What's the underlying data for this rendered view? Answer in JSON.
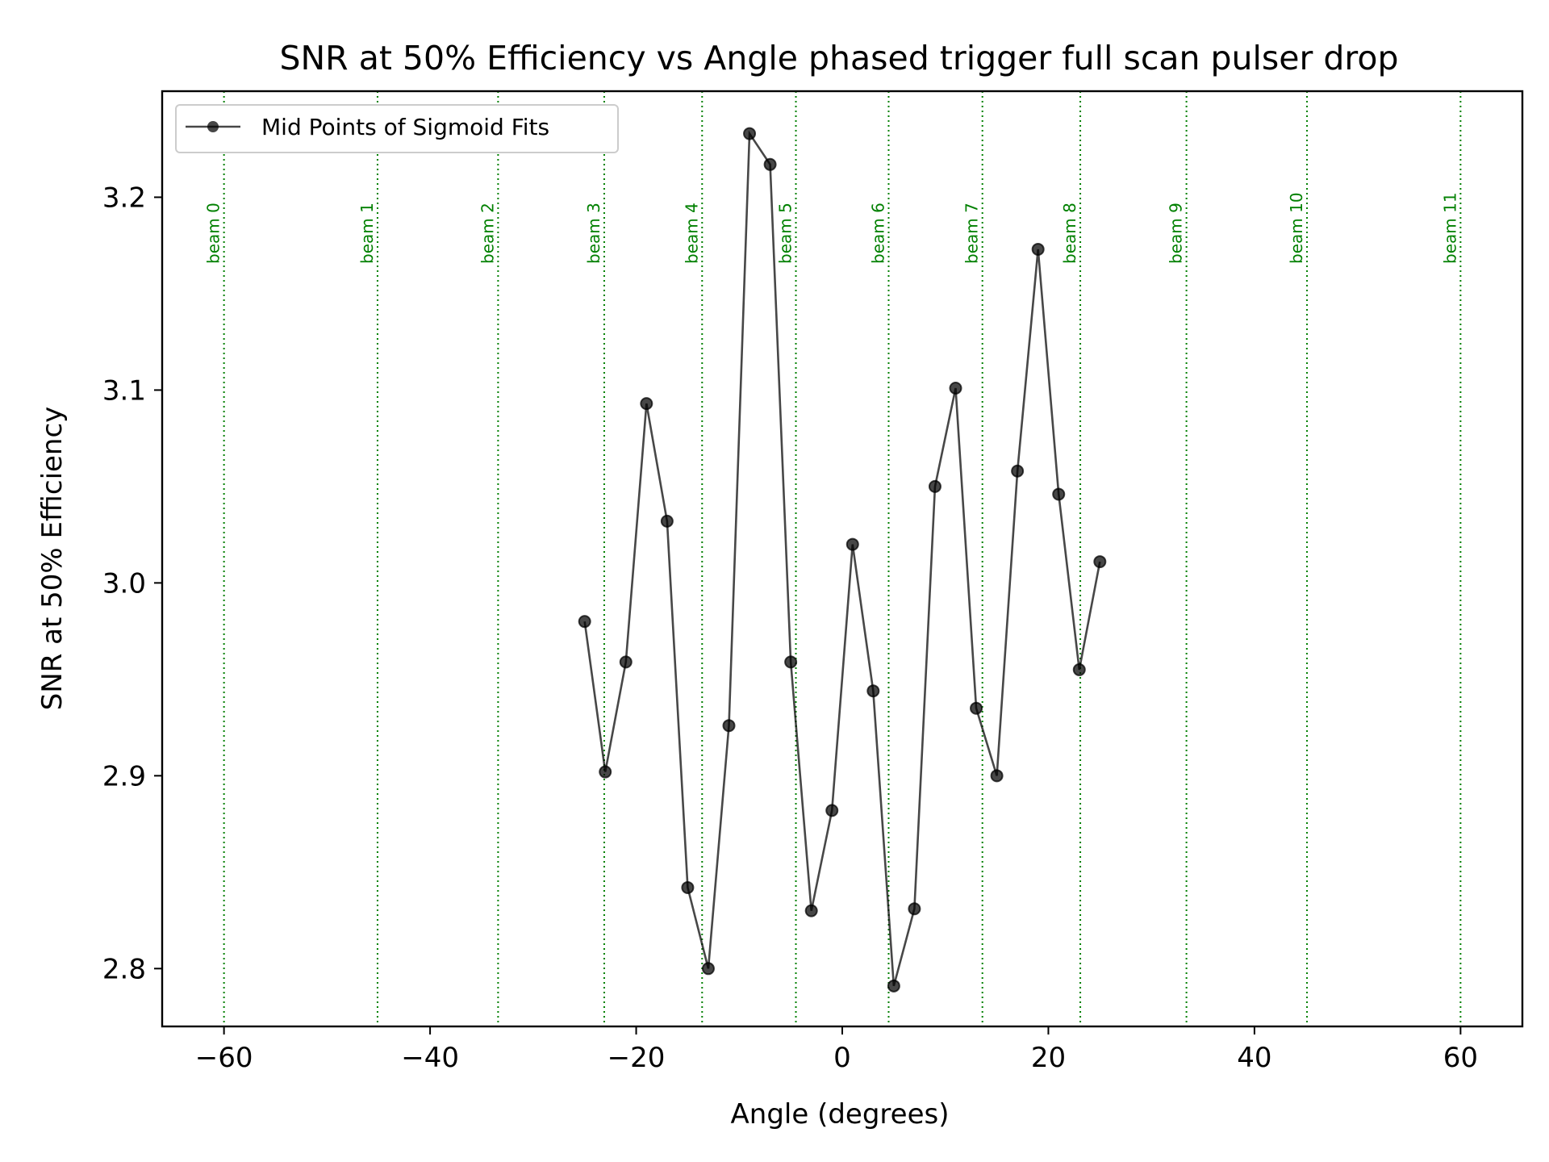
{
  "chart_data": {
    "type": "line",
    "title": "SNR at 50% Efficiency vs Angle phased trigger full scan pulser drop",
    "xlabel": "Angle (degrees)",
    "ylabel": "SNR at 50% Efficiency",
    "xlim": [
      -66,
      66
    ],
    "ylim": [
      2.77,
      3.255
    ],
    "xticks": [
      -60,
      -40,
      -20,
      0,
      20,
      40,
      60
    ],
    "xtick_labels": [
      "−60",
      "−40",
      "−20",
      "0",
      "20",
      "40",
      "60"
    ],
    "yticks": [
      2.8,
      2.9,
      3.0,
      3.1,
      3.2
    ],
    "ytick_labels": [
      "2.8",
      "2.9",
      "3.0",
      "3.1",
      "3.2"
    ],
    "grid": false,
    "legend_position": "top-left",
    "series": [
      {
        "name": "Mid Points of Sigmoid Fits",
        "color": "#000000",
        "x": [
          -25,
          -23,
          -21,
          -19,
          -17,
          -15,
          -13,
          -11,
          -9,
          -7,
          -5,
          -3,
          -1,
          1,
          3,
          5,
          7,
          9,
          11,
          13,
          15,
          17,
          19,
          21,
          23,
          25
        ],
        "y": [
          2.98,
          2.902,
          2.959,
          3.093,
          3.032,
          2.842,
          2.8,
          2.926,
          3.233,
          3.217,
          2.959,
          2.83,
          2.882,
          3.02,
          2.944,
          2.791,
          2.831,
          3.05,
          3.101,
          2.935,
          2.9,
          3.058,
          3.173,
          3.046,
          2.955,
          3.011
        ]
      }
    ],
    "vertical_lines": {
      "color": "#008000",
      "style": "dotted",
      "x": [
        -60,
        -45.1,
        -33.4,
        -23.1,
        -13.6,
        -4.5,
        4.5,
        13.6,
        23.1,
        33.4,
        45.1,
        60
      ],
      "labels": [
        "beam 0",
        "beam 1",
        "beam 2",
        "beam 3",
        "beam 4",
        "beam 5",
        "beam 6",
        "beam 7",
        "beam 8",
        "beam 9",
        "beam 10",
        "beam 11"
      ]
    }
  }
}
